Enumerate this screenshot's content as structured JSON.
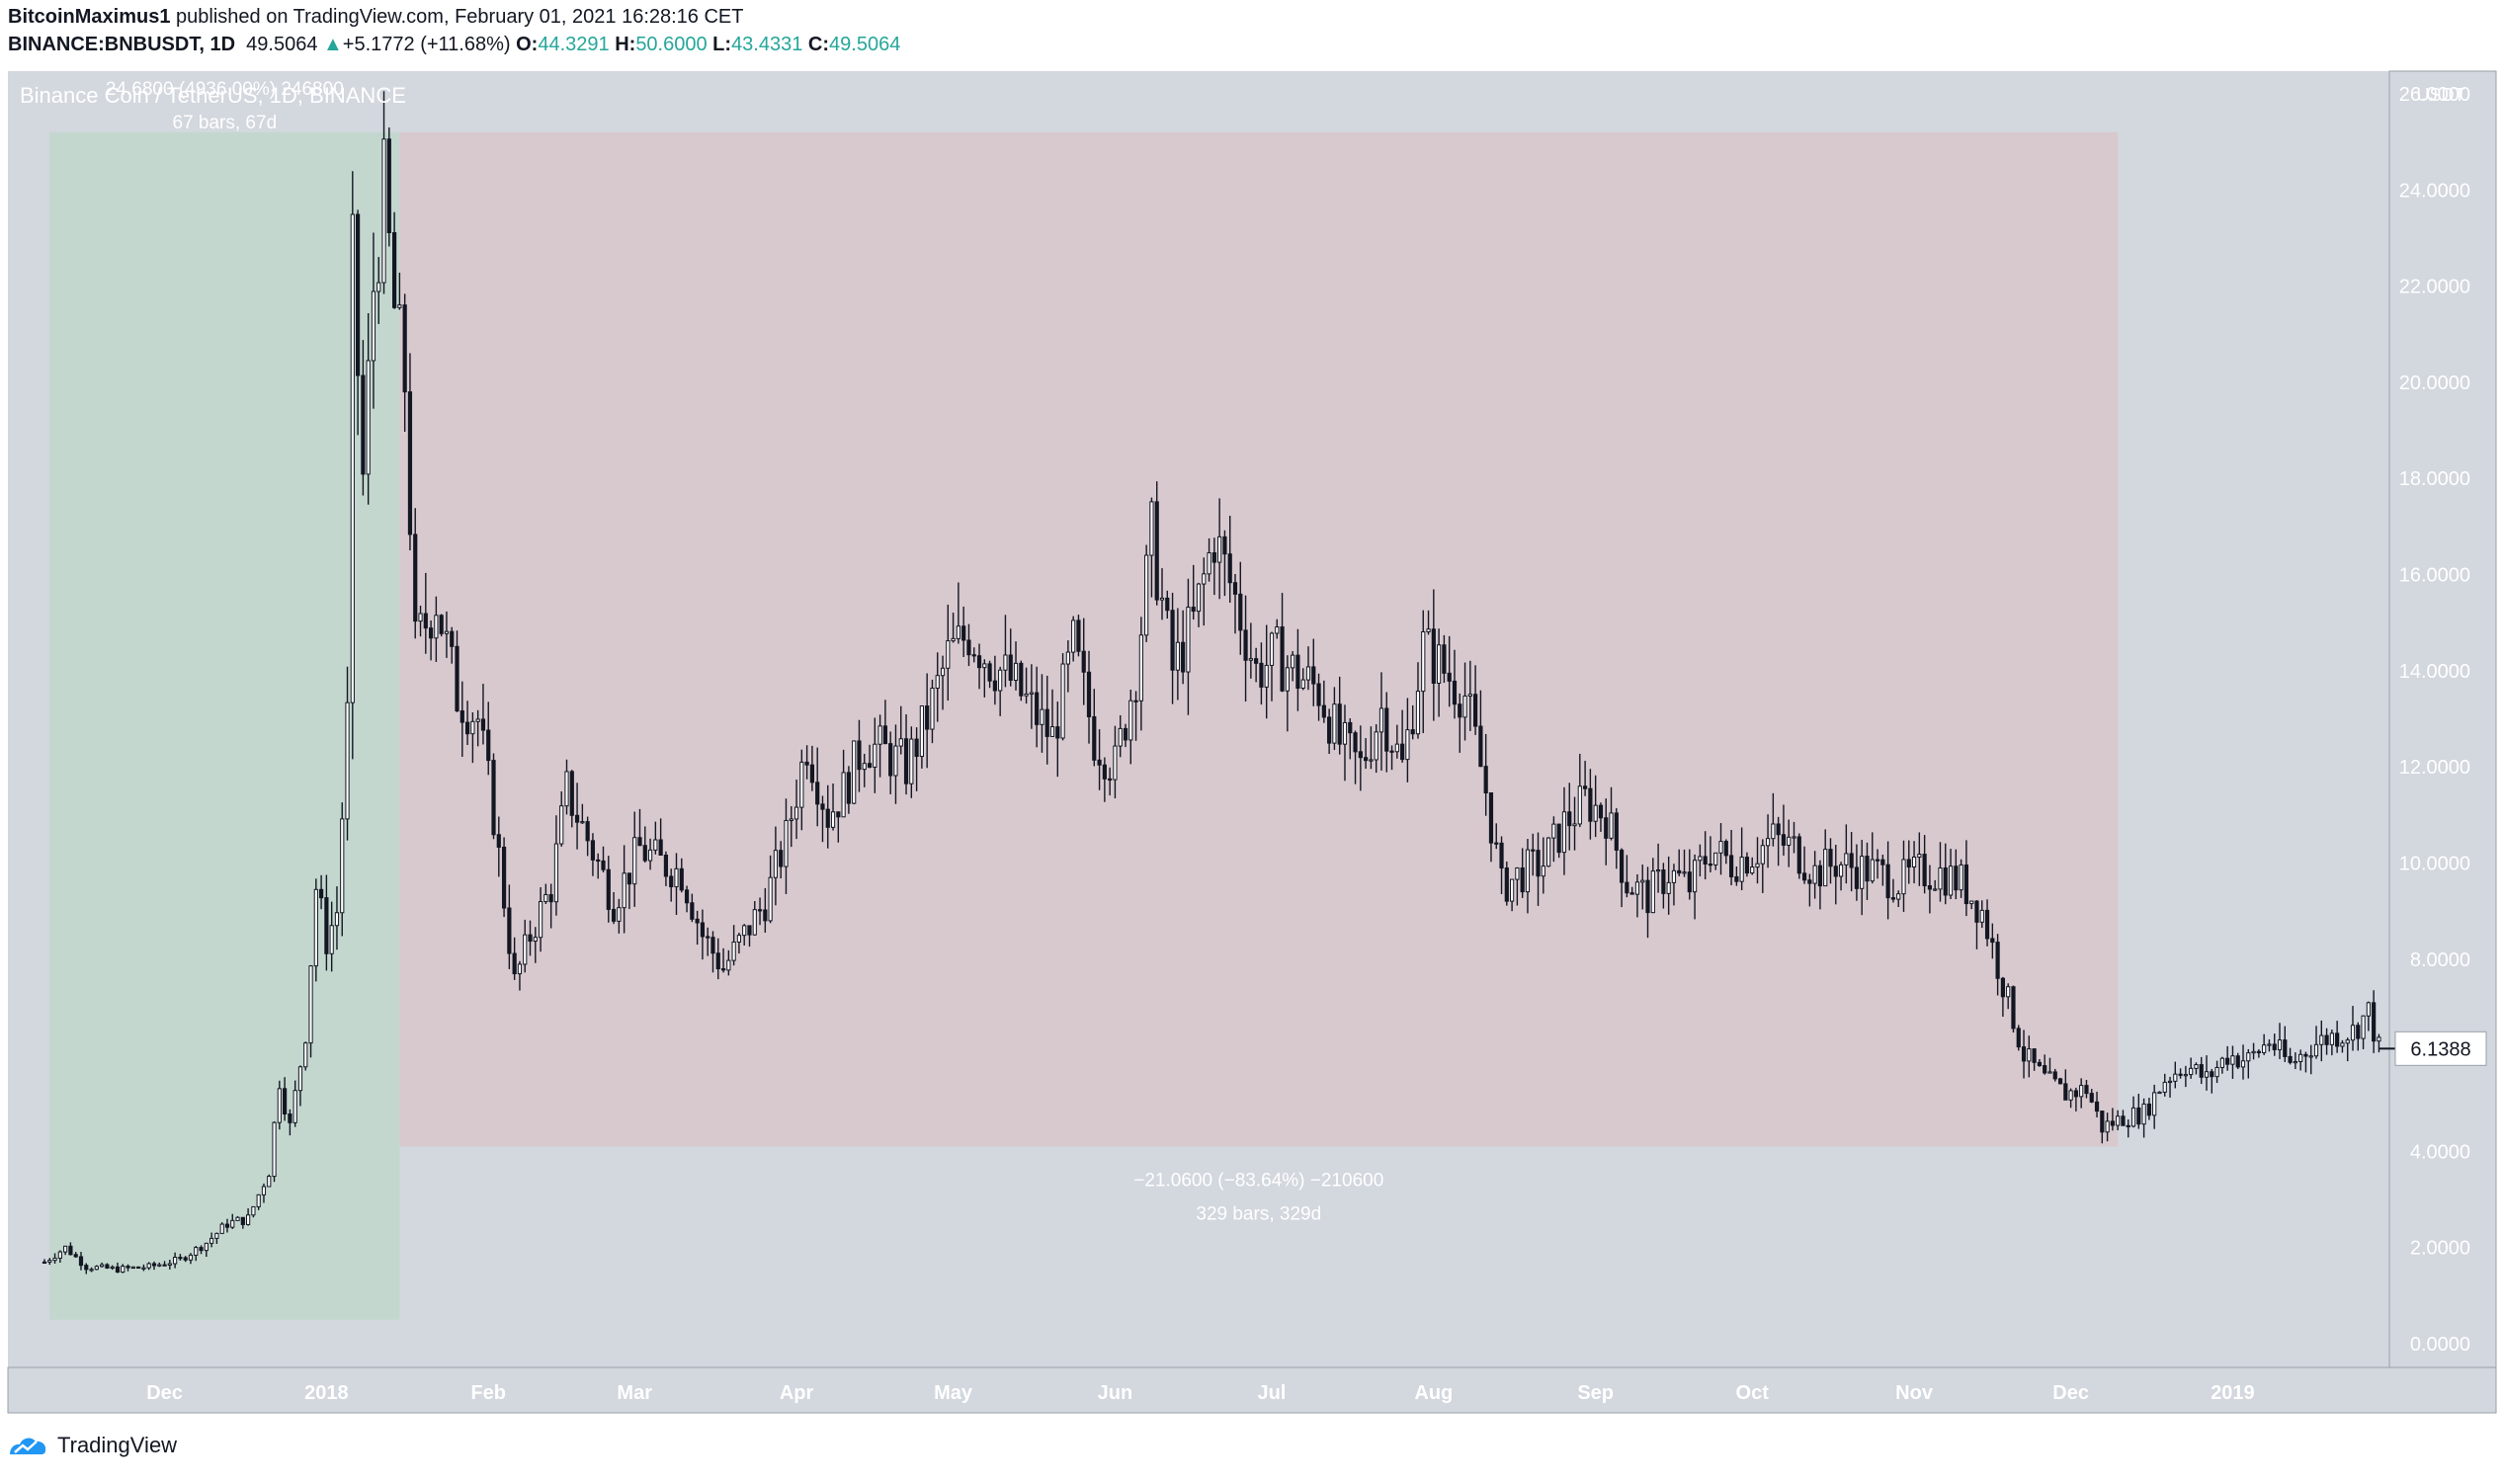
{
  "header": {
    "author": "BitcoinMaximus1",
    "published": "published on TradingView.com, February 01, 2021 16:28:16 CET",
    "symbol": "BINANCE:BNBUSDT, 1D",
    "last": "49.5064",
    "change": "+5.1772 (+11.68%)",
    "o_label": "O:",
    "o": "44.3291",
    "h_label": "H:",
    "h": "50.6000",
    "l_label": "L:",
    "l": "43.4331",
    "c_label": "C:",
    "c": "49.5064"
  },
  "footer": {
    "brand": "TradingView"
  },
  "colors": {
    "plot_bg": "#d3d7de",
    "gain_zone": "#c3d7ce",
    "loss_zone": "#d8c9cf",
    "candle": "#131722",
    "label_text": "#ffffff",
    "accent_up": "#26a69a"
  },
  "chart_data": {
    "type": "candlestick",
    "title": "Binance Coin / TetherUS, 1D, BINANCE",
    "currency_label": "USDT",
    "y_ticks": [
      "0.0000",
      "2.0000",
      "4.0000",
      "6.0000",
      "8.0000",
      "10.0000",
      "12.0000",
      "14.0000",
      "16.0000",
      "18.0000",
      "20.0000",
      "22.0000",
      "24.0000",
      "26.0000"
    ],
    "ylim": [
      0,
      26
    ],
    "x_start": "2017-11-01",
    "x_end": "2019-01-31",
    "x_ticks": [
      {
        "label": "Dec",
        "date": "2017-12-01"
      },
      {
        "label": "2018",
        "date": "2018-01-01"
      },
      {
        "label": "Feb",
        "date": "2018-02-01"
      },
      {
        "label": "Mar",
        "date": "2018-03-01"
      },
      {
        "label": "Apr",
        "date": "2018-04-01"
      },
      {
        "label": "May",
        "date": "2018-05-01"
      },
      {
        "label": "Jun",
        "date": "2018-06-01"
      },
      {
        "label": "Jul",
        "date": "2018-07-01"
      },
      {
        "label": "Aug",
        "date": "2018-08-01"
      },
      {
        "label": "Sep",
        "date": "2018-09-01"
      },
      {
        "label": "Oct",
        "date": "2018-10-01"
      },
      {
        "label": "Nov",
        "date": "2018-11-01"
      },
      {
        "label": "Dec",
        "date": "2018-12-01"
      },
      {
        "label": "2019",
        "date": "2019-01-01"
      }
    ],
    "last_price_label": "6.1388",
    "last_price": 6.1388,
    "price_path": [
      [
        "2017-11-08",
        1.7
      ],
      [
        "2017-11-12",
        2.0
      ],
      [
        "2017-11-16",
        1.6
      ],
      [
        "2017-11-22",
        1.55
      ],
      [
        "2017-11-28",
        1.6
      ],
      [
        "2017-12-04",
        1.75
      ],
      [
        "2017-12-09",
        2.1
      ],
      [
        "2017-12-13",
        2.5
      ],
      [
        "2017-12-17",
        2.6
      ],
      [
        "2017-12-21",
        3.6
      ],
      [
        "2017-12-23",
        5.5
      ],
      [
        "2017-12-25",
        4.5
      ],
      [
        "2017-12-28",
        6.5
      ],
      [
        "2017-12-30",
        9.5
      ],
      [
        "2018-01-01",
        8.4
      ],
      [
        "2018-01-03",
        9.0
      ],
      [
        "2018-01-05",
        13.0
      ],
      [
        "2018-01-06",
        22.5
      ],
      [
        "2018-01-08",
        18.0
      ],
      [
        "2018-01-10",
        22.0
      ],
      [
        "2018-01-12",
        24.0
      ],
      [
        "2018-01-14",
        21.5
      ],
      [
        "2018-01-16",
        20.0
      ],
      [
        "2018-01-18",
        14.5
      ],
      [
        "2018-01-22",
        15.5
      ],
      [
        "2018-01-26",
        13.5
      ],
      [
        "2018-01-30",
        13.0
      ],
      [
        "2018-02-02",
        11.0
      ],
      [
        "2018-02-06",
        7.5
      ],
      [
        "2018-02-09",
        8.5
      ],
      [
        "2018-02-13",
        9.5
      ],
      [
        "2018-02-16",
        11.5
      ],
      [
        "2018-02-20",
        10.5
      ],
      [
        "2018-02-25",
        9.2
      ],
      [
        "2018-03-02",
        10.3
      ],
      [
        "2018-03-06",
        10.0
      ],
      [
        "2018-03-10",
        9.8
      ],
      [
        "2018-03-14",
        8.5
      ],
      [
        "2018-03-18",
        7.8
      ],
      [
        "2018-03-22",
        8.5
      ],
      [
        "2018-03-26",
        9.2
      ],
      [
        "2018-03-30",
        10.5
      ],
      [
        "2018-04-03",
        12.5
      ],
      [
        "2018-04-07",
        11.0
      ],
      [
        "2018-04-10",
        11.5
      ],
      [
        "2018-04-14",
        12.5
      ],
      [
        "2018-04-18",
        12.3
      ],
      [
        "2018-04-22",
        12.0
      ],
      [
        "2018-04-26",
        13.0
      ],
      [
        "2018-04-30",
        14.3
      ],
      [
        "2018-05-04",
        14.8
      ],
      [
        "2018-05-08",
        14.2
      ],
      [
        "2018-05-12",
        13.8
      ],
      [
        "2018-05-16",
        13.2
      ],
      [
        "2018-05-20",
        12.6
      ],
      [
        "2018-05-24",
        14.5
      ],
      [
        "2018-05-28",
        12.6
      ],
      [
        "2018-06-01",
        12.0
      ],
      [
        "2018-06-05",
        14.0
      ],
      [
        "2018-06-08",
        16.8
      ],
      [
        "2018-06-12",
        14.0
      ],
      [
        "2018-06-16",
        15.0
      ],
      [
        "2018-06-20",
        16.8
      ],
      [
        "2018-06-24",
        15.5
      ],
      [
        "2018-06-28",
        14.0
      ],
      [
        "2018-07-02",
        14.3
      ],
      [
        "2018-07-06",
        13.9
      ],
      [
        "2018-07-10",
        13.6
      ],
      [
        "2018-07-14",
        12.5
      ],
      [
        "2018-07-18",
        12.0
      ],
      [
        "2018-07-22",
        13.2
      ],
      [
        "2018-07-26",
        12.0
      ],
      [
        "2018-07-30",
        14.5
      ],
      [
        "2018-08-03",
        14.0
      ],
      [
        "2018-08-07",
        13.5
      ],
      [
        "2018-08-11",
        11.5
      ],
      [
        "2018-08-14",
        9.5
      ],
      [
        "2018-08-18",
        9.8
      ],
      [
        "2018-08-22",
        10.0
      ],
      [
        "2018-08-26",
        10.8
      ],
      [
        "2018-08-30",
        11.3
      ],
      [
        "2018-09-03",
        11.0
      ],
      [
        "2018-09-07",
        9.6
      ],
      [
        "2018-09-11",
        9.3
      ],
      [
        "2018-09-15",
        9.8
      ],
      [
        "2018-09-19",
        9.5
      ],
      [
        "2018-09-23",
        10.3
      ],
      [
        "2018-09-27",
        10.0
      ],
      [
        "2018-10-01",
        10.2
      ],
      [
        "2018-10-05",
        10.5
      ],
      [
        "2018-10-09",
        10.3
      ],
      [
        "2018-10-13",
        9.8
      ],
      [
        "2018-10-17",
        10.0
      ],
      [
        "2018-10-21",
        9.9
      ],
      [
        "2018-10-25",
        9.8
      ],
      [
        "2018-10-29",
        9.6
      ],
      [
        "2018-11-02",
        9.8
      ],
      [
        "2018-11-06",
        9.8
      ],
      [
        "2018-11-10",
        9.6
      ],
      [
        "2018-11-14",
        9.0
      ],
      [
        "2018-11-18",
        7.5
      ],
      [
        "2018-11-22",
        6.0
      ],
      [
        "2018-11-26",
        5.5
      ],
      [
        "2018-11-30",
        5.2
      ],
      [
        "2018-12-04",
        5.3
      ],
      [
        "2018-12-07",
        4.5
      ],
      [
        "2018-12-11",
        4.7
      ],
      [
        "2018-12-15",
        4.8
      ],
      [
        "2018-12-19",
        5.5
      ],
      [
        "2018-12-23",
        5.8
      ],
      [
        "2018-12-27",
        5.5
      ],
      [
        "2018-12-31",
        6.0
      ],
      [
        "2019-01-04",
        5.9
      ],
      [
        "2019-01-08",
        6.3
      ],
      [
        "2019-01-12",
        5.8
      ],
      [
        "2019-01-16",
        6.2
      ],
      [
        "2019-01-20",
        6.4
      ],
      [
        "2019-01-24",
        6.5
      ],
      [
        "2019-01-27",
        6.9
      ],
      [
        "2019-01-29",
        6.14
      ]
    ],
    "measure_up": {
      "start": "2017-11-09",
      "end": "2018-01-15",
      "low": 0.5,
      "high": 25.2,
      "label1": "24.6800 (4936.00%) 246800",
      "label2": "67 bars, 67d"
    },
    "measure_down": {
      "start": "2018-01-15",
      "end": "2018-12-10",
      "low": 4.1,
      "high": 25.2,
      "label1": "−21.0600 (−83.64%) −210600",
      "label2": "329 bars, 329d"
    }
  }
}
